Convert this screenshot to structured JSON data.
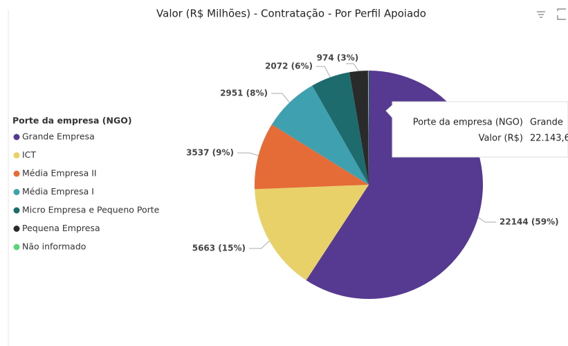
{
  "chart_data": {
    "type": "pie",
    "title": "Valor (R$ Milhões) - Contratação - Por Perfil Apoiado",
    "legend_title": "Porte da empresa (NGO)",
    "legend": "left",
    "categories": [
      "Grande Empresa",
      "ICT",
      "Média Empresa II",
      "Média Empresa I",
      "Micro Empresa e Pequeno Porte",
      "Pequena Empresa",
      "Não informado"
    ],
    "values": [
      22144,
      5663,
      3537,
      2951,
      2072,
      974,
      40
    ],
    "value_labels": [
      "22144 (59%)",
      "5663 (15%)",
      "3537 (9%)",
      "2951 (8%)",
      "2072 (6%)",
      "974 (3%)",
      null
    ],
    "colors": [
      "#563a92",
      "#e9d16a",
      "#e56b37",
      "#3fa1b0",
      "#1e6b6e",
      "#2a2a2a",
      "#5ed47a"
    ]
  },
  "tooltip": {
    "rows": [
      [
        "Porte da empresa (NGO)",
        "Grande"
      ],
      [
        "Valor (R$)",
        "22.143,6"
      ]
    ]
  }
}
